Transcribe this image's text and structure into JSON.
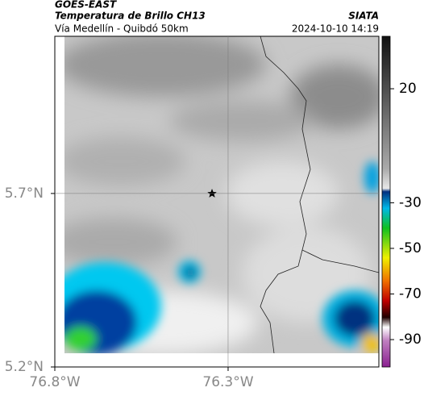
{
  "header": {
    "source": "GOES-EAST",
    "title": "Temperatura de Brillo CH13",
    "agency": "SIATA",
    "route": "Vía Medellín - Quibdó 50km",
    "datetime": "2024-10-10 14:19"
  },
  "map": {
    "xlim": [
      -76.8,
      -75.865
    ],
    "ylim": [
      5.2,
      6.153
    ],
    "xticks": [
      {
        "value": -76.8,
        "label": "76.8°W"
      },
      {
        "value": -76.3,
        "label": "76.3°W"
      }
    ],
    "yticks": [
      {
        "value": 5.2,
        "label": "5.2°N"
      },
      {
        "value": 5.7,
        "label": "5.7°N"
      }
    ],
    "grid": true
  },
  "colorbar": {
    "lim": [
      43,
      -102
    ],
    "ticks": [
      20,
      -30,
      -50,
      -70,
      -90
    ]
  }
}
